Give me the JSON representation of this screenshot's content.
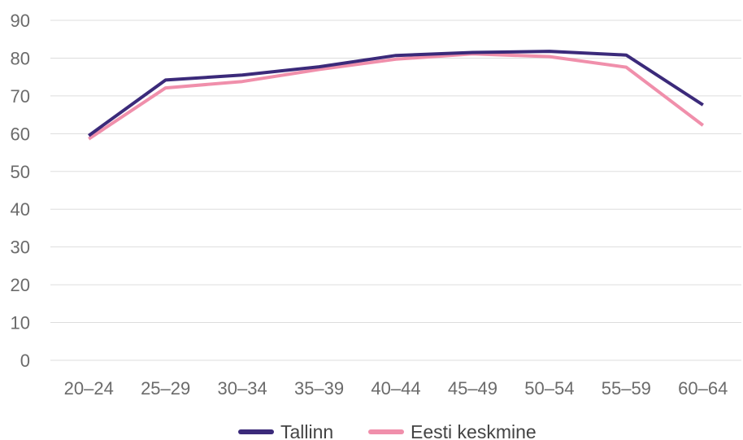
{
  "chart_data": {
    "type": "line",
    "title": "",
    "xlabel": "",
    "ylabel": "",
    "categories": [
      "20–24",
      "25–29",
      "30–34",
      "35–39",
      "40–44",
      "45–49",
      "50–54",
      "55–59",
      "60–64"
    ],
    "ylim": [
      0,
      90
    ],
    "yticks": [
      0,
      10,
      20,
      30,
      40,
      50,
      60,
      70,
      80,
      90
    ],
    "grid": "horizontal",
    "legend_position": "bottom-center",
    "series": [
      {
        "name": "Tallinn",
        "color": "#3b2a7a",
        "values": [
          59.5,
          74.2,
          75.5,
          77.7,
          80.7,
          81.5,
          81.8,
          80.8,
          67.6
        ]
      },
      {
        "name": "Eesti keskmine",
        "color": "#f08fab",
        "values": [
          58.6,
          72.1,
          73.8,
          77.0,
          79.7,
          81.1,
          80.4,
          77.6,
          62.2
        ]
      }
    ]
  }
}
